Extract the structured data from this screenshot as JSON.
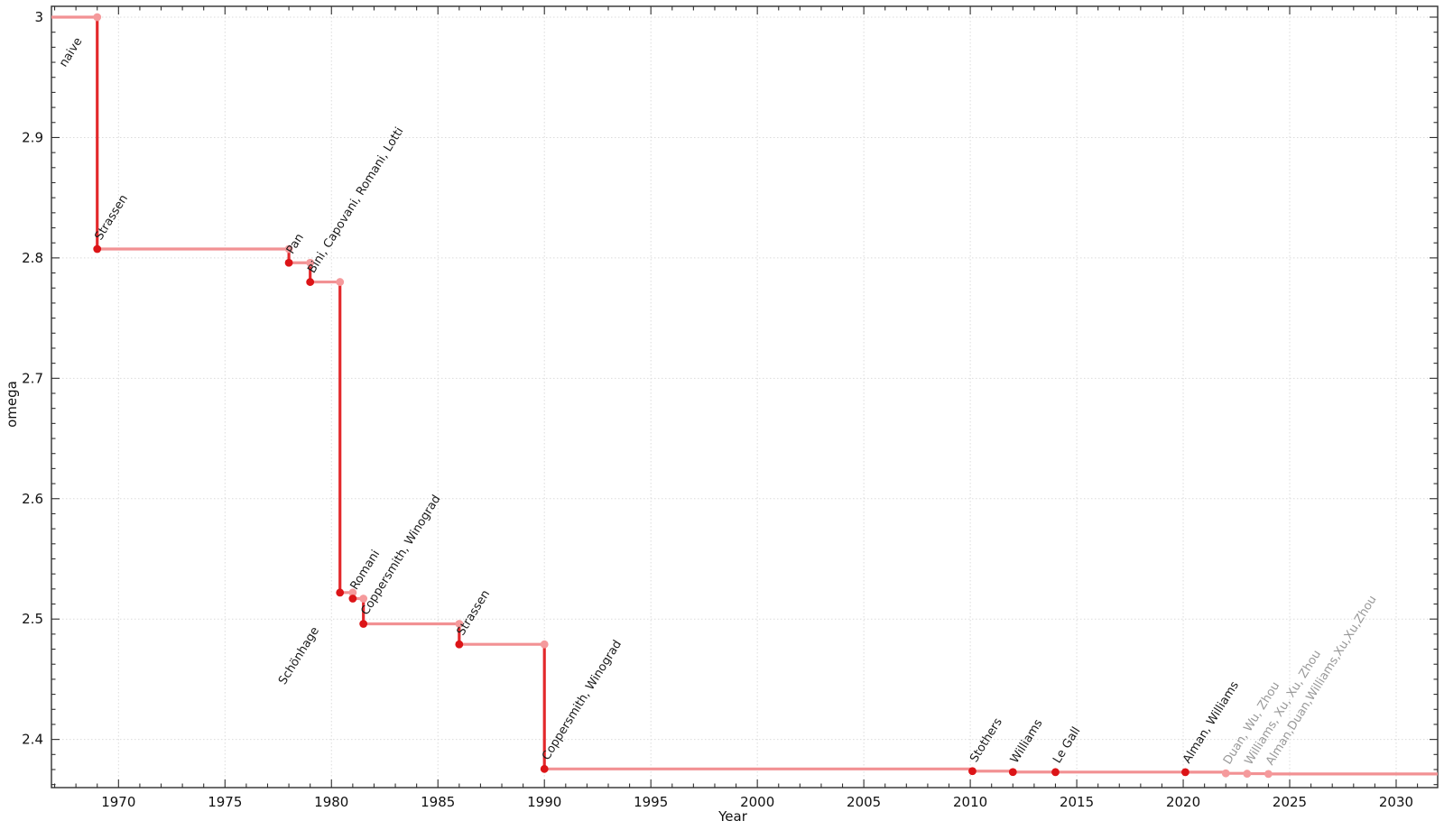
{
  "chart_data": {
    "type": "line",
    "subtype": "step",
    "title": "",
    "xlabel": "Year",
    "ylabel": "omega",
    "xlim": [
      1966.85,
      2031.95
    ],
    "ylim": [
      2.36,
      3.009
    ],
    "x_major_ticks": [
      1970,
      1975,
      1980,
      1985,
      1990,
      1995,
      2000,
      2005,
      2010,
      2015,
      2020,
      2025,
      2030
    ],
    "x_minor_step": 1,
    "y_major_ticks": [
      {
        "value": 2.4,
        "label": "2.4"
      },
      {
        "value": 2.5,
        "label": "2.5"
      },
      {
        "value": 2.6,
        "label": "2.6"
      },
      {
        "value": 2.7,
        "label": "2.7"
      },
      {
        "value": 2.8,
        "label": "2.8"
      },
      {
        "value": 2.9,
        "label": "2.9"
      },
      {
        "value": 3.0,
        "label": "3"
      }
    ],
    "y_minor_step": 0.0125,
    "grid": {
      "show": true,
      "style": "dotted"
    },
    "legend": "none",
    "label_rotation_deg": -58,
    "initial": {
      "omega": 3.0,
      "label": "naive",
      "label_anchor": {
        "year": 1967.5,
        "omega": 2.958
      }
    },
    "events": [
      {
        "label": "Strassen",
        "year": 1969,
        "omega": 2.8074
      },
      {
        "label": "Pan",
        "year": 1978,
        "omega": 2.796
      },
      {
        "label": "Bini, Capovani, Romani, Lotti",
        "year": 1979,
        "omega": 2.78
      },
      {
        "label": "Schönhage",
        "year": 1980.4,
        "omega": 2.522,
        "label_anchor": {
          "year": 1977.8,
          "omega": 2.445
        }
      },
      {
        "label": "Romani",
        "year": 1981,
        "omega": 2.517
      },
      {
        "label": "Coppersmith, Winograd",
        "year": 1981.5,
        "omega": 2.496
      },
      {
        "label": "Strassen",
        "year": 1986,
        "omega": 2.479
      },
      {
        "label": "Coppersmith, Winograd",
        "year": 1990,
        "omega": 2.3755
      },
      {
        "label": "Stothers",
        "year": 2010.1,
        "omega": 2.3737
      },
      {
        "label": "Williams",
        "year": 2012,
        "omega": 2.3729
      },
      {
        "label": "Le Gall",
        "year": 2014,
        "omega": 2.3728639
      },
      {
        "label": "Alman, Williams",
        "year": 2020.1,
        "omega": 2.3728596
      },
      {
        "label": "Duan, Wu, Zhou",
        "year": 2022,
        "omega": 2.371866,
        "recent": true
      },
      {
        "label": "Williams, Xu, Xu, Zhou",
        "year": 2023,
        "omega": 2.371552,
        "recent": true
      },
      {
        "label": "Alman,Duan,Williams,Xu,Xu,Zhou",
        "year": 2024,
        "omega": 2.371339,
        "recent": true
      }
    ],
    "colors": {
      "step_line": "#F29193",
      "drop_line": "#E3282B",
      "event_dot": "#DC1417",
      "corner_dot": "#F59A9C",
      "recent_dot": "#F59A9C",
      "event_label": "#1A1A1A",
      "recent_label": "#999999",
      "grid": "#DBDBDB",
      "frame": "#2F2F2F",
      "tick_label": "#111111"
    }
  }
}
